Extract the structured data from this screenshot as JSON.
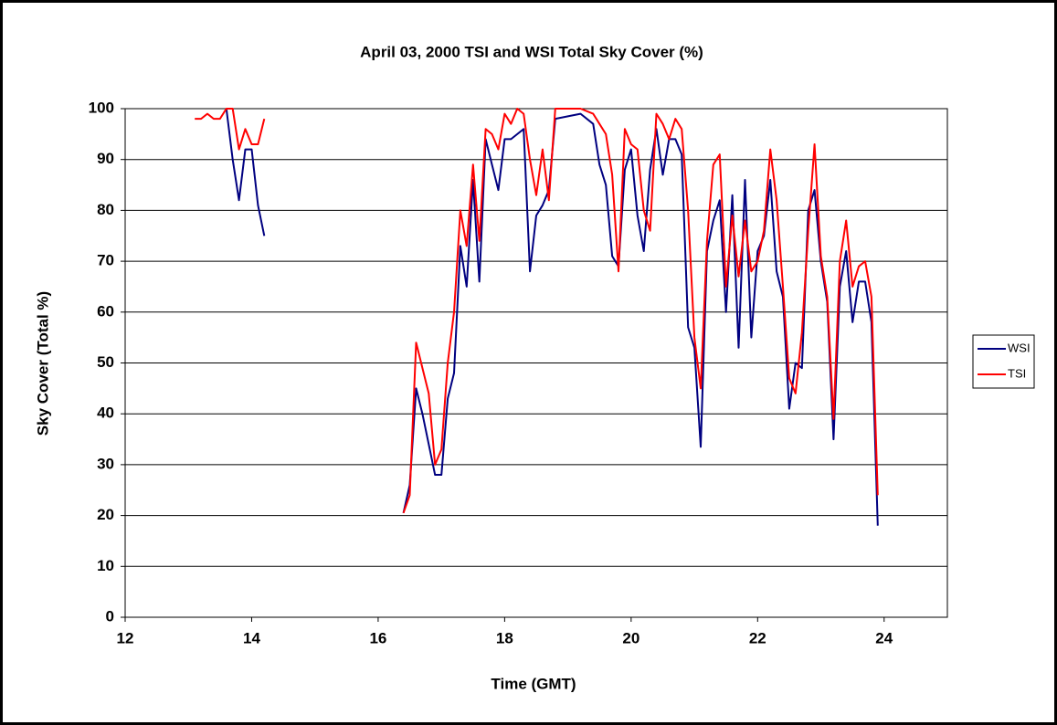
{
  "chart_data": {
    "type": "line",
    "title": "April 03, 2000   TSI and WSI Total Sky Cover (%)",
    "x_label": "Time (GMT)",
    "y_label": "Sky Cover (Total %)",
    "x": [
      13.1,
      13.2,
      13.3,
      13.4,
      13.5,
      13.6,
      13.7,
      13.8,
      13.9,
      14.0,
      14.1,
      14.2,
      15.3,
      16.4,
      16.5,
      16.6,
      16.7,
      16.8,
      16.9,
      17.0,
      17.1,
      17.2,
      17.3,
      17.4,
      17.5,
      17.6,
      17.7,
      17.8,
      17.9,
      18.0,
      18.1,
      18.2,
      18.3,
      18.4,
      18.5,
      18.6,
      18.7,
      18.8,
      19.0,
      19.2,
      19.4,
      19.5,
      19.6,
      19.7,
      19.8,
      19.9,
      20.0,
      20.1,
      20.2,
      20.3,
      20.4,
      20.5,
      20.6,
      20.7,
      20.8,
      20.9,
      21.0,
      21.1,
      21.2,
      21.3,
      21.4,
      21.5,
      21.6,
      21.7,
      21.8,
      21.9,
      22.0,
      22.1,
      22.2,
      22.3,
      22.4,
      22.5,
      22.6,
      22.7,
      22.8,
      22.9,
      23.0,
      23.1,
      23.2,
      23.3,
      23.4,
      23.5,
      23.6,
      23.7,
      23.8,
      23.9
    ],
    "series": [
      {
        "name": "WSI",
        "color": "#000080",
        "values": [
          null,
          null,
          null,
          null,
          null,
          100,
          90,
          82,
          92,
          92,
          81,
          75,
          null,
          20.5,
          26,
          45,
          40,
          34,
          28,
          28,
          43,
          48,
          73,
          65,
          86,
          66,
          94,
          89,
          84,
          94,
          94,
          95,
          96,
          68,
          79,
          81,
          84,
          98,
          98.5,
          99,
          97,
          89,
          85,
          71,
          69,
          88,
          92,
          79,
          72,
          88,
          96,
          87,
          94,
          94,
          91,
          57,
          53,
          33.5,
          72,
          78,
          82,
          60,
          83,
          53,
          86,
          55,
          72,
          75,
          86,
          68,
          63,
          41,
          50,
          49,
          80,
          84,
          70,
          62,
          35,
          65,
          72,
          58,
          66,
          66,
          58,
          18
        ]
      },
      {
        "name": "TSI",
        "color": "#ff0000",
        "values": [
          98,
          98,
          99,
          98,
          98,
          100,
          100,
          92,
          96,
          93,
          93,
          98,
          null,
          20.5,
          24,
          54,
          49,
          44,
          30,
          33,
          50,
          60,
          80,
          73,
          89,
          74,
          96,
          95,
          92,
          99,
          97,
          100,
          99,
          90,
          83,
          92,
          82,
          100,
          100,
          100,
          99,
          97,
          95,
          87,
          68,
          96,
          93,
          92,
          80,
          76,
          99,
          97,
          94,
          98,
          96,
          80,
          55,
          45,
          74,
          89,
          91,
          65,
          79,
          67,
          78,
          68,
          70,
          76,
          92,
          82,
          65,
          47,
          44,
          56,
          76,
          93,
          71,
          63,
          39,
          70,
          78,
          65,
          69,
          70,
          63,
          24
        ]
      }
    ],
    "xlim": [
      12,
      25
    ],
    "xticks": [
      12,
      14,
      16,
      18,
      20,
      22,
      24
    ],
    "ylim": [
      0,
      100
    ],
    "yticks": [
      0,
      10,
      20,
      30,
      40,
      50,
      60,
      70,
      80,
      90,
      100
    ],
    "grid": true,
    "legend": "right"
  }
}
